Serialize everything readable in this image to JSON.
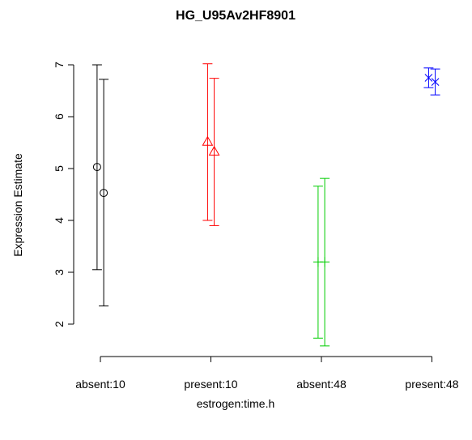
{
  "chart_data": {
    "type": "scatter",
    "title": "HG_U95Av2HF8901",
    "xlabel": "estrogen:time.h",
    "ylabel": "Expression Estimate",
    "ylim": [
      1.7,
      7.2
    ],
    "y_ticks": [
      2,
      3,
      4,
      5,
      6,
      7
    ],
    "grid": false,
    "categories": [
      "absent:10",
      "present:10",
      "absent:48",
      "present:48"
    ],
    "series": [
      {
        "category": "absent:10",
        "color": "#000000",
        "marker": "circle",
        "points": [
          {
            "x_offset": -0.03,
            "y": 5.03,
            "lower": 3.05,
            "upper": 7.0
          },
          {
            "x_offset": 0.03,
            "y": 4.53,
            "lower": 2.35,
            "upper": 6.72
          }
        ]
      },
      {
        "category": "present:10",
        "color": "#ff0000",
        "marker": "triangle",
        "points": [
          {
            "x_offset": -0.03,
            "y": 5.52,
            "lower": 4.0,
            "upper": 7.02
          },
          {
            "x_offset": 0.03,
            "y": 5.33,
            "lower": 3.9,
            "upper": 6.74
          }
        ]
      },
      {
        "category": "absent:48",
        "color": "#00cd00",
        "marker": "plus",
        "points": [
          {
            "x_offset": -0.03,
            "y": 3.2,
            "lower": 1.73,
            "upper": 4.66
          },
          {
            "x_offset": 0.03,
            "y": 3.2,
            "lower": 1.58,
            "upper": 4.81
          }
        ]
      },
      {
        "category": "present:48",
        "color": "#0000ff",
        "marker": "x",
        "points": [
          {
            "x_offset": -0.03,
            "y": 6.75,
            "lower": 6.56,
            "upper": 6.94
          },
          {
            "x_offset": 0.03,
            "y": 6.67,
            "lower": 6.42,
            "upper": 6.92
          }
        ]
      }
    ]
  }
}
